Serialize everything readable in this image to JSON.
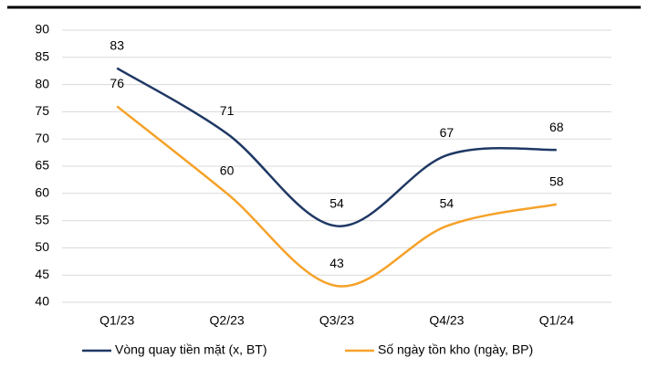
{
  "chart_data": {
    "type": "line",
    "categories": [
      "Q1/23",
      "Q2/23",
      "Q3/23",
      "Q4/23",
      "Q1/24"
    ],
    "series": [
      {
        "name": "Vòng quay tiền mặt (x, BT)",
        "color": "#1f3864",
        "values": [
          83,
          71,
          54,
          67,
          68
        ]
      },
      {
        "name": "Số ngày tồn kho (ngày, BP)",
        "color": "#f5a22a",
        "values": [
          76,
          60,
          43,
          54,
          58
        ]
      }
    ],
    "ylim": [
      40,
      90
    ],
    "yticks": [
      40,
      45,
      50,
      55,
      60,
      65,
      70,
      75,
      80,
      85,
      90
    ],
    "grid": true,
    "smooth": true,
    "legend": "bottom"
  }
}
